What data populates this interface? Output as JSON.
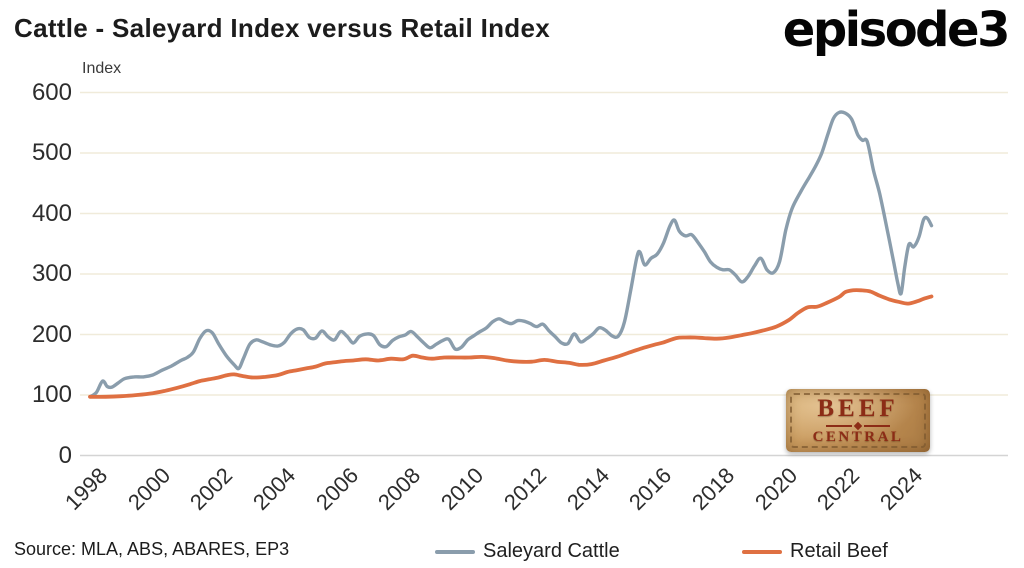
{
  "header": {
    "title": "Cattle - Saleyard Index versus Retail Index",
    "logo_text": "episode3"
  },
  "source_text": "Source: MLA, ABS, ABARES, EP3",
  "badge": {
    "word1": "BEEF",
    "word2": "CENTRAL"
  },
  "chart_data": {
    "type": "line",
    "title": "Cattle - Saleyard Index versus Retail Index",
    "y_axis_label": "Index",
    "xlabel": "",
    "ylabel": "Index",
    "ylim": [
      0,
      600
    ],
    "yticks": [
      0,
      100,
      200,
      300,
      400,
      500,
      600
    ],
    "xticks": [
      "1998",
      "2000",
      "2002",
      "2004",
      "2006",
      "2008",
      "2010",
      "2012",
      "2014",
      "2016",
      "2018",
      "2020",
      "2022",
      "2024"
    ],
    "x_range_years": [
      1998,
      2025
    ],
    "grid": "horizontal",
    "grid_color": "#F0EBDA",
    "axis_color": "#D4D4D4",
    "legend_position": "bottom-center",
    "series": [
      {
        "name": "Saleyard Cattle",
        "color": "#8A9DAC",
        "stroke_width": 3.4,
        "points": [
          [
            1998.0,
            97
          ],
          [
            1998.2,
            104
          ],
          [
            1998.4,
            123
          ],
          [
            1998.55,
            114
          ],
          [
            1998.7,
            113
          ],
          [
            1998.9,
            120
          ],
          [
            1999.1,
            127
          ],
          [
            1999.4,
            130
          ],
          [
            1999.7,
            130
          ],
          [
            2000.0,
            133
          ],
          [
            2000.3,
            141
          ],
          [
            2000.6,
            148
          ],
          [
            2000.9,
            157
          ],
          [
            2001.1,
            162
          ],
          [
            2001.3,
            171
          ],
          [
            2001.5,
            193
          ],
          [
            2001.7,
            206
          ],
          [
            2001.9,
            203
          ],
          [
            2002.1,
            185
          ],
          [
            2002.35,
            165
          ],
          [
            2002.6,
            150
          ],
          [
            2002.75,
            144
          ],
          [
            2002.9,
            161
          ],
          [
            2003.1,
            184
          ],
          [
            2003.3,
            191
          ],
          [
            2003.5,
            188
          ],
          [
            2003.75,
            183
          ],
          [
            2004.0,
            181
          ],
          [
            2004.2,
            187
          ],
          [
            2004.4,
            201
          ],
          [
            2004.6,
            209
          ],
          [
            2004.8,
            208
          ],
          [
            2005.0,
            195
          ],
          [
            2005.2,
            194
          ],
          [
            2005.4,
            206
          ],
          [
            2005.6,
            196
          ],
          [
            2005.8,
            191
          ],
          [
            2006.0,
            205
          ],
          [
            2006.2,
            197
          ],
          [
            2006.4,
            186
          ],
          [
            2006.6,
            197
          ],
          [
            2006.85,
            201
          ],
          [
            2007.05,
            198
          ],
          [
            2007.25,
            183
          ],
          [
            2007.45,
            180
          ],
          [
            2007.65,
            190
          ],
          [
            2007.85,
            196
          ],
          [
            2008.05,
            199
          ],
          [
            2008.25,
            205
          ],
          [
            2008.45,
            196
          ],
          [
            2008.65,
            186
          ],
          [
            2008.85,
            178
          ],
          [
            2009.05,
            184
          ],
          [
            2009.25,
            190
          ],
          [
            2009.45,
            192
          ],
          [
            2009.65,
            176
          ],
          [
            2009.85,
            179
          ],
          [
            2010.05,
            191
          ],
          [
            2010.25,
            198
          ],
          [
            2010.45,
            205
          ],
          [
            2010.65,
            211
          ],
          [
            2010.85,
            221
          ],
          [
            2011.05,
            226
          ],
          [
            2011.25,
            221
          ],
          [
            2011.45,
            218
          ],
          [
            2011.65,
            223
          ],
          [
            2011.85,
            222
          ],
          [
            2012.05,
            218
          ],
          [
            2012.25,
            213
          ],
          [
            2012.45,
            217
          ],
          [
            2012.65,
            206
          ],
          [
            2012.85,
            196
          ],
          [
            2013.05,
            186
          ],
          [
            2013.25,
            185
          ],
          [
            2013.45,
            201
          ],
          [
            2013.65,
            188
          ],
          [
            2013.85,
            193
          ],
          [
            2014.05,
            201
          ],
          [
            2014.25,
            211
          ],
          [
            2014.45,
            207
          ],
          [
            2014.65,
            198
          ],
          [
            2014.85,
            197
          ],
          [
            2015.05,
            220
          ],
          [
            2015.25,
            272
          ],
          [
            2015.45,
            328
          ],
          [
            2015.55,
            336
          ],
          [
            2015.7,
            315
          ],
          [
            2015.9,
            326
          ],
          [
            2016.1,
            333
          ],
          [
            2016.3,
            351
          ],
          [
            2016.5,
            379
          ],
          [
            2016.65,
            389
          ],
          [
            2016.8,
            371
          ],
          [
            2017.0,
            363
          ],
          [
            2017.2,
            365
          ],
          [
            2017.4,
            352
          ],
          [
            2017.6,
            337
          ],
          [
            2017.8,
            320
          ],
          [
            2018.0,
            311
          ],
          [
            2018.2,
            307
          ],
          [
            2018.4,
            307
          ],
          [
            2018.6,
            298
          ],
          [
            2018.8,
            287
          ],
          [
            2019.0,
            296
          ],
          [
            2019.2,
            313
          ],
          [
            2019.4,
            326
          ],
          [
            2019.6,
            307
          ],
          [
            2019.8,
            302
          ],
          [
            2020.0,
            320
          ],
          [
            2020.2,
            372
          ],
          [
            2020.4,
            408
          ],
          [
            2020.7,
            438
          ],
          [
            2020.95,
            460
          ],
          [
            2021.15,
            478
          ],
          [
            2021.35,
            500
          ],
          [
            2021.55,
            532
          ],
          [
            2021.72,
            557
          ],
          [
            2021.9,
            567
          ],
          [
            2022.1,
            566
          ],
          [
            2022.3,
            556
          ],
          [
            2022.5,
            530
          ],
          [
            2022.65,
            521
          ],
          [
            2022.8,
            519
          ],
          [
            2023.0,
            471
          ],
          [
            2023.2,
            432
          ],
          [
            2023.45,
            370
          ],
          [
            2023.65,
            318
          ],
          [
            2023.78,
            284
          ],
          [
            2023.88,
            268
          ],
          [
            2024.0,
            312
          ],
          [
            2024.13,
            349
          ],
          [
            2024.28,
            345
          ],
          [
            2024.45,
            361
          ],
          [
            2024.6,
            390
          ],
          [
            2024.72,
            392
          ],
          [
            2024.85,
            380
          ]
        ]
      },
      {
        "name": "Retail Beef",
        "color": "#DF7042",
        "stroke_width": 3.8,
        "points": [
          [
            1998.0,
            97
          ],
          [
            1998.5,
            97
          ],
          [
            1999.0,
            98
          ],
          [
            1999.5,
            100
          ],
          [
            2000.0,
            103
          ],
          [
            2000.4,
            107
          ],
          [
            2000.8,
            112
          ],
          [
            2001.2,
            118
          ],
          [
            2001.5,
            123
          ],
          [
            2001.8,
            126
          ],
          [
            2002.1,
            129
          ],
          [
            2002.4,
            133
          ],
          [
            2002.6,
            134
          ],
          [
            2002.9,
            131
          ],
          [
            2003.2,
            129
          ],
          [
            2003.6,
            130
          ],
          [
            2004.0,
            133
          ],
          [
            2004.3,
            138
          ],
          [
            2004.6,
            141
          ],
          [
            2004.9,
            144
          ],
          [
            2005.2,
            147
          ],
          [
            2005.5,
            152
          ],
          [
            2005.8,
            154
          ],
          [
            2006.1,
            156
          ],
          [
            2006.4,
            157
          ],
          [
            2006.8,
            159
          ],
          [
            2007.2,
            157
          ],
          [
            2007.6,
            160
          ],
          [
            2008.0,
            159
          ],
          [
            2008.3,
            165
          ],
          [
            2008.6,
            162
          ],
          [
            2008.9,
            160
          ],
          [
            2009.3,
            162
          ],
          [
            2009.7,
            162
          ],
          [
            2010.1,
            162
          ],
          [
            2010.5,
            163
          ],
          [
            2010.9,
            161
          ],
          [
            2011.3,
            157
          ],
          [
            2011.7,
            155
          ],
          [
            2012.1,
            155
          ],
          [
            2012.5,
            158
          ],
          [
            2012.9,
            155
          ],
          [
            2013.3,
            153
          ],
          [
            2013.6,
            150
          ],
          [
            2014.0,
            151
          ],
          [
            2014.4,
            157
          ],
          [
            2014.8,
            163
          ],
          [
            2015.2,
            170
          ],
          [
            2015.6,
            177
          ],
          [
            2016.0,
            183
          ],
          [
            2016.3,
            187
          ],
          [
            2016.7,
            194
          ],
          [
            2017.0,
            195
          ],
          [
            2017.3,
            195
          ],
          [
            2017.6,
            194
          ],
          [
            2018.0,
            193
          ],
          [
            2018.4,
            195
          ],
          [
            2018.8,
            199
          ],
          [
            2019.1,
            202
          ],
          [
            2019.5,
            207
          ],
          [
            2019.9,
            213
          ],
          [
            2020.3,
            224
          ],
          [
            2020.6,
            236
          ],
          [
            2020.9,
            245
          ],
          [
            2021.2,
            246
          ],
          [
            2021.5,
            252
          ],
          [
            2021.9,
            262
          ],
          [
            2022.1,
            270
          ],
          [
            2022.35,
            273
          ],
          [
            2022.6,
            273
          ],
          [
            2022.9,
            271
          ],
          [
            2023.2,
            264
          ],
          [
            2023.5,
            258
          ],
          [
            2023.8,
            254
          ],
          [
            2024.1,
            251
          ],
          [
            2024.4,
            255
          ],
          [
            2024.6,
            259
          ],
          [
            2024.85,
            263
          ]
        ]
      }
    ]
  }
}
